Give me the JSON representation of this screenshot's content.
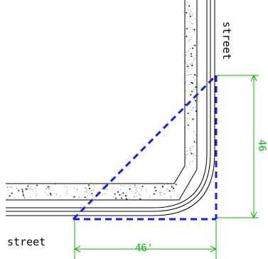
{
  "labels": {
    "street_left": "street",
    "street_right": "street",
    "dimension_horizontal": "46'",
    "dimension_vertical": "46"
  },
  "colors": {
    "curb_lines": "#000000",
    "sidewalk_speckle": "#333333",
    "dimension_lines": "#00b400",
    "sight_triangle": "#1a1aff"
  }
}
